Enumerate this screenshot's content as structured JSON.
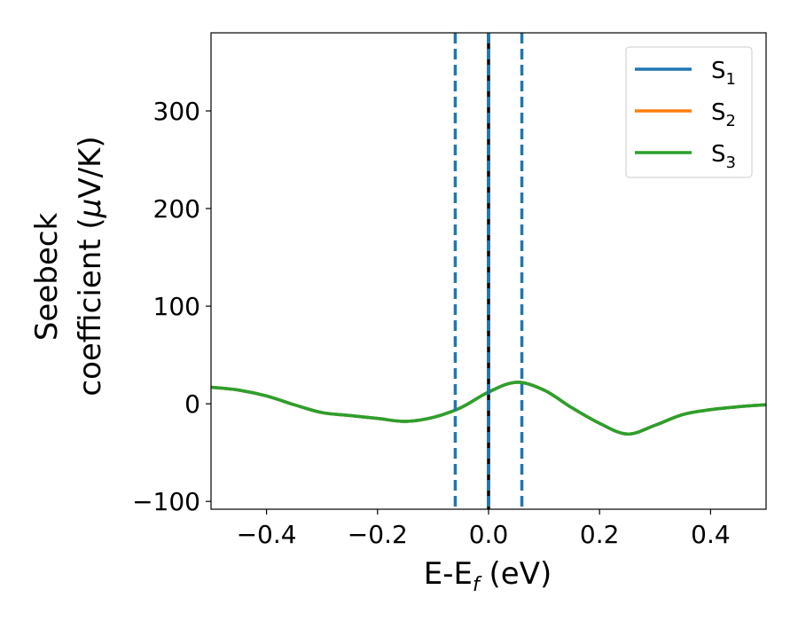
{
  "chart_data": {
    "type": "line",
    "xlabel": "E-E",
    "xlabel_sub": "f",
    "xlabel_unit": " (eV)",
    "ylabel_line1": "Seebeck",
    "ylabel_line2": "coefficient  (",
    "ylabel_mu": "μ",
    "ylabel_unit": "V/K)",
    "xlim": [
      -0.5,
      0.5
    ],
    "ylim": [
      -108,
      380
    ],
    "xticks": [
      -0.4,
      -0.2,
      0.0,
      0.2,
      0.4
    ],
    "xtick_labels": [
      "−0.4",
      "−0.2",
      "0.0",
      "0.2",
      "0.4"
    ],
    "yticks": [
      -100,
      0,
      100,
      200,
      300
    ],
    "ytick_labels": [
      "−100",
      "0",
      "100",
      "200",
      "300"
    ],
    "grid": false,
    "legend_position": "top-right",
    "series": [
      {
        "name": "S",
        "sub": "1",
        "color": "#1f77b4"
      },
      {
        "name": "S",
        "sub": "2",
        "color": "#ff7f0e"
      },
      {
        "name": "S",
        "sub": "3",
        "color": "#2ca02c"
      }
    ],
    "x": [
      -0.5,
      -0.45,
      -0.4,
      -0.35,
      -0.3,
      -0.25,
      -0.2,
      -0.15,
      -0.1,
      -0.05,
      0.0,
      0.05,
      0.1,
      0.15,
      0.2,
      0.25,
      0.3,
      0.35,
      0.4,
      0.45,
      0.5
    ],
    "y": [
      17,
      14,
      8,
      -1,
      -9,
      -12,
      -15,
      -18,
      -14,
      -4,
      12,
      22,
      14,
      -4,
      -20,
      -31,
      -22,
      -11,
      -6,
      -3,
      -1
    ],
    "vlines": [
      {
        "x": -0.06,
        "style": "dashed",
        "color": "#1f77b4"
      },
      {
        "x": 0.0,
        "style": "solid",
        "color": "#000000"
      },
      {
        "x": 0.0,
        "style": "dashed",
        "color": "#1f77b4"
      },
      {
        "x": 0.06,
        "style": "dashed",
        "color": "#1f77b4"
      }
    ]
  }
}
